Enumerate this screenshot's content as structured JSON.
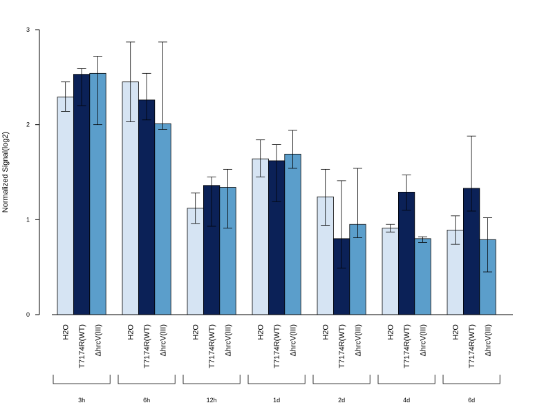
{
  "chart_data": {
    "type": "bar",
    "ylabel": "Normalized Signal(log2)",
    "ylim": [
      0,
      3
    ],
    "yticks": [
      0,
      1,
      2,
      3
    ],
    "grid": false,
    "legend": "none",
    "groups": [
      "3h",
      "6h",
      "12h",
      "1d",
      "2d",
      "4d",
      "6d"
    ],
    "series": [
      {
        "label": "H2O",
        "color": "#d6e4f3",
        "values": [
          2.29,
          2.45,
          1.12,
          1.64,
          1.24,
          0.91,
          0.89
        ],
        "err_low": [
          2.14,
          2.03,
          0.96,
          1.45,
          0.94,
          0.87,
          0.74
        ],
        "err_high": [
          2.45,
          2.87,
          1.28,
          1.84,
          1.53,
          0.95,
          1.04
        ]
      },
      {
        "label": "T7174R(WT)",
        "color": "#0b2157",
        "values": [
          2.53,
          2.26,
          1.36,
          1.62,
          0.8,
          1.29,
          1.33
        ],
        "err_low": [
          2.2,
          2.05,
          0.93,
          1.19,
          0.49,
          1.1,
          1.09
        ],
        "err_high": [
          2.59,
          2.54,
          1.45,
          1.79,
          1.41,
          1.47,
          1.88
        ]
      },
      {
        "label": "ΔhrcV(III)",
        "color": "#5b9ecb",
        "values": [
          2.54,
          2.01,
          1.34,
          1.69,
          0.95,
          0.8,
          0.79
        ],
        "err_low": [
          2.0,
          1.95,
          0.91,
          1.54,
          0.81,
          0.76,
          0.45
        ],
        "err_high": [
          2.72,
          2.87,
          1.53,
          1.94,
          1.54,
          0.82,
          1.02
        ]
      }
    ]
  }
}
